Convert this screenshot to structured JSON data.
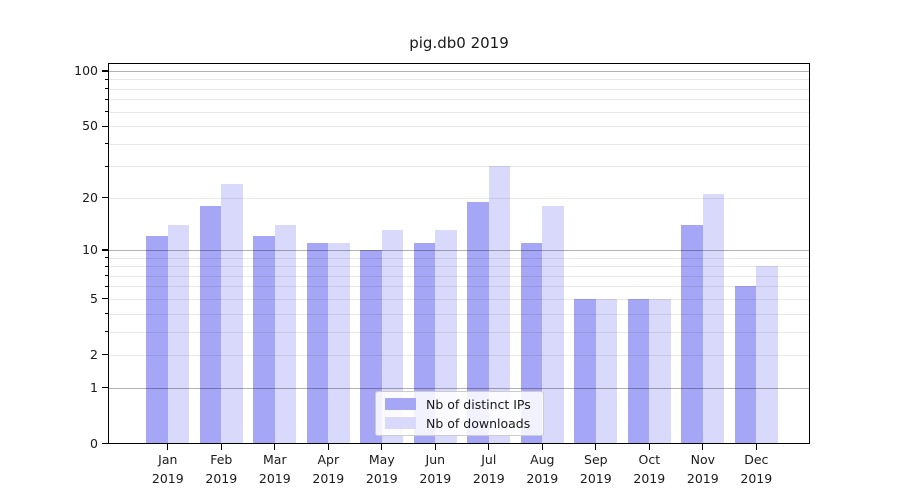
{
  "title": "pig.db0 2019",
  "chart_data": {
    "type": "bar",
    "title": "pig.db0 2019",
    "x_categories": [
      "Jan",
      "Feb",
      "Mar",
      "Apr",
      "May",
      "Jun",
      "Jul",
      "Aug",
      "Sep",
      "Oct",
      "Nov",
      "Dec"
    ],
    "x_year": "2019",
    "series": [
      {
        "name": "Nb of distinct IPs",
        "color": "#a6a6f6",
        "values": [
          12,
          18,
          12,
          11,
          10,
          11,
          19,
          11,
          5,
          5,
          14,
          6
        ]
      },
      {
        "name": "Nb of downloads",
        "color": "#d9d9fb",
        "values": [
          14,
          24,
          14,
          11,
          13,
          13,
          30,
          18,
          5,
          5,
          21,
          8
        ]
      }
    ],
    "y_scale": "log10(1+v)",
    "ylim": [
      0,
      110
    ],
    "y_ticks": [
      {
        "value": 100,
        "label": "100"
      },
      {
        "value": 50,
        "label": "50"
      },
      {
        "value": 20,
        "label": "20"
      },
      {
        "value": 10,
        "label": "10"
      },
      {
        "value": 5,
        "label": "5"
      },
      {
        "value": 2,
        "label": "2"
      },
      {
        "value": 1,
        "label": "1"
      },
      {
        "value": 0,
        "label": "0"
      }
    ],
    "grid_major": [
      1,
      10,
      100
    ],
    "grid_minor": [
      2,
      3,
      4,
      5,
      6,
      7,
      8,
      9,
      20,
      30,
      40,
      50,
      60,
      70,
      80,
      90
    ],
    "grid_on": true,
    "legend_position": "lower center"
  },
  "legend": {
    "items": [
      {
        "label": "Nb of distinct IPs",
        "color": "#a6a6f6"
      },
      {
        "label": "Nb of downloads",
        "color": "#d9d9fb"
      }
    ]
  }
}
